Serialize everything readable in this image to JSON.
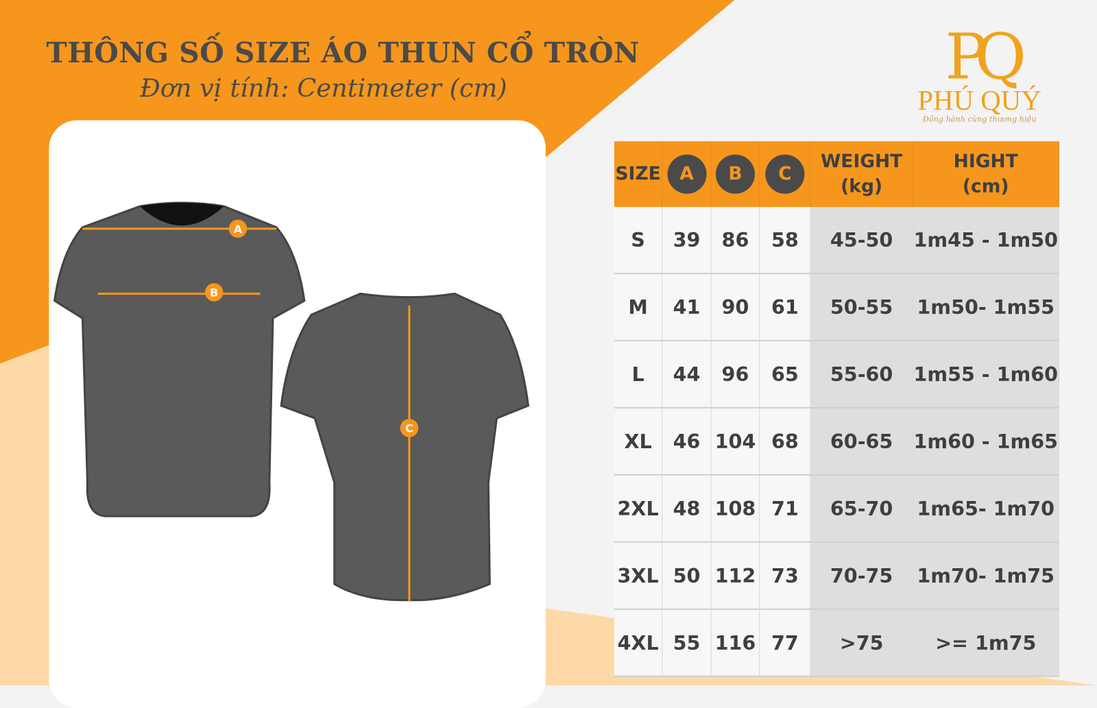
{
  "header": {
    "title": "THÔNG SỐ SIZE ÁO THUN CỔ TRÒN",
    "subtitle": "Đơn vị tính: Centimeter (cm)"
  },
  "logo": {
    "mark": "PQ",
    "name": "PHÚ QUÝ",
    "tagline": "Đồng hành cùng thương hiệu"
  },
  "colors": {
    "accent": "#f6961c",
    "dark": "#4a4a4a",
    "background": "#f3f3f3"
  },
  "diagram": {
    "markers": [
      "A",
      "B",
      "C"
    ]
  },
  "table": {
    "headers": {
      "size": "SIZE",
      "a": "A",
      "b": "B",
      "c": "C",
      "weight": "WEIGHT",
      "weight_unit": "(kg)",
      "height": "HIGHT",
      "height_unit": "(cm)"
    },
    "rows": [
      {
        "size": "S",
        "a": "39",
        "b": "86",
        "c": "58",
        "weight": "45-50",
        "height": "1m45 - 1m50"
      },
      {
        "size": "M",
        "a": "41",
        "b": "90",
        "c": "61",
        "weight": "50-55",
        "height": "1m50- 1m55"
      },
      {
        "size": "L",
        "a": "44",
        "b": "96",
        "c": "65",
        "weight": "55-60",
        "height": "1m55 - 1m60"
      },
      {
        "size": "XL",
        "a": "46",
        "b": "104",
        "c": "68",
        "weight": "60-65",
        "height": "1m60 - 1m65"
      },
      {
        "size": "2XL",
        "a": "48",
        "b": "108",
        "c": "71",
        "weight": "65-70",
        "height": "1m65- 1m70"
      },
      {
        "size": "3XL",
        "a": "50",
        "b": "112",
        "c": "73",
        "weight": "70-75",
        "height": "1m70- 1m75"
      },
      {
        "size": "4XL",
        "a": "55",
        "b": "116",
        "c": "77",
        "weight": ">75",
        "height": ">= 1m75"
      }
    ]
  }
}
